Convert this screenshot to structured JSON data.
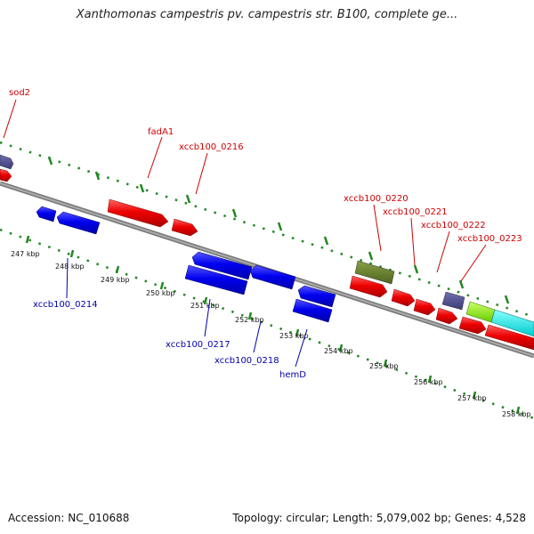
{
  "title": "Xanthomonas campestris pv. campestris str. B100, complete ge...",
  "footer": {
    "accession": "Accession: NC_010688",
    "summary": "Topology: circular; Length: 5,079,002 bp; Genes: 4,528"
  },
  "colors": {
    "backbone": "#888888",
    "forward_gene": "#0000ee",
    "reverse_gene": "#ee0000",
    "ruler_tick": "#228822",
    "label_forward": "#0000aa",
    "label_reverse": "#cc0000"
  },
  "ruler_labels": [
    "247 kbp",
    "248 kbp",
    "249 kbp",
    "250 kbp",
    "251 kbp",
    "252 kbp",
    "253 kbp",
    "254 kbp",
    "255 kbp",
    "256 kbp",
    "257 kbp",
    "258 kbp"
  ],
  "gene_labels": {
    "reverse": [
      "sod2",
      "fadA1",
      "xccb100_0216",
      "xccb100_0220",
      "xccb100_0221",
      "xccb100_0222",
      "xccb100_0223"
    ],
    "forward": [
      "xccb100_0214",
      "xccb100_0217",
      "xccb100_0218",
      "hemD"
    ]
  }
}
